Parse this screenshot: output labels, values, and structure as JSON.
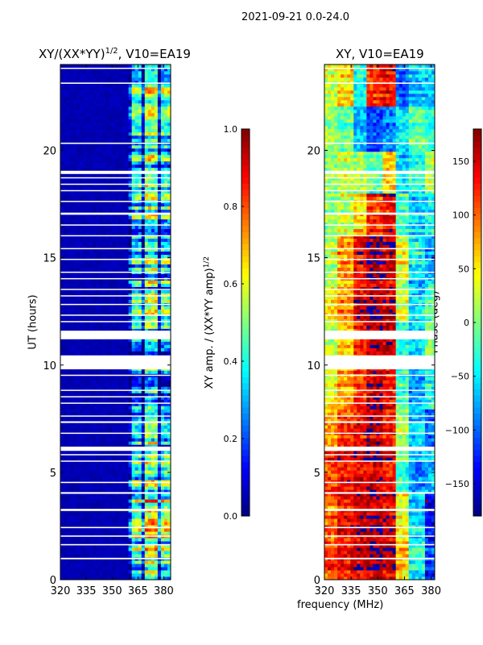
{
  "suptitle": "2021-09-21 0.0-24.0",
  "xlabel": "frequency (MHz)",
  "chart_data": [
    {
      "type": "heatmap",
      "title": "XY/(XX*YY)^{1/2}, V10=EA19",
      "title_main": "XY/(XX*YY)",
      "title_sup": "1/2",
      "title_suffix": ", V10=EA19",
      "xlabel": "frequency (MHz)",
      "ylabel": "UT (hours)",
      "xlim": [
        320,
        384
      ],
      "ylim": [
        0,
        24
      ],
      "xticks": [
        "320",
        "335",
        "350",
        "365",
        "380"
      ],
      "yticks": [
        "0",
        "5",
        "10",
        "15",
        "20"
      ],
      "freq_bins": [
        320,
        328,
        336,
        344,
        352,
        360,
        368,
        376,
        384
      ],
      "ut_bins": [
        0,
        2,
        4,
        6,
        8,
        10,
        12,
        14,
        16,
        18,
        20,
        22,
        24
      ],
      "values_by_ut_bin": [
        [
          0.05,
          0.05,
          0.05,
          0.05,
          0.05,
          0.45,
          0.6,
          0.5
        ],
        [
          0.05,
          0.05,
          0.05,
          0.05,
          0.05,
          0.5,
          0.65,
          0.55
        ],
        [
          0.05,
          0.05,
          0.05,
          0.05,
          0.05,
          0.4,
          0.5,
          0.45
        ],
        [
          0.05,
          0.05,
          0.05,
          0.05,
          0.05,
          0.3,
          0.45,
          0.3
        ],
        [
          0.05,
          0.05,
          0.05,
          0.05,
          0.05,
          0.25,
          0.35,
          0.25
        ],
        [
          0.05,
          0.05,
          0.05,
          0.05,
          0.05,
          0.3,
          0.4,
          0.3
        ],
        [
          0.05,
          0.05,
          0.05,
          0.05,
          0.05,
          0.35,
          0.45,
          0.35
        ],
        [
          0.05,
          0.05,
          0.05,
          0.05,
          0.05,
          0.35,
          0.45,
          0.35
        ],
        [
          0.05,
          0.05,
          0.05,
          0.05,
          0.05,
          0.35,
          0.45,
          0.35
        ],
        [
          0.05,
          0.05,
          0.05,
          0.05,
          0.05,
          0.35,
          0.45,
          0.35
        ],
        [
          0.05,
          0.05,
          0.05,
          0.05,
          0.05,
          0.4,
          0.5,
          0.4
        ],
        [
          0.05,
          0.05,
          0.05,
          0.05,
          0.05,
          0.4,
          0.5,
          0.4
        ]
      ],
      "colorbar": {
        "label": "XY amp. / (XX*YY amp)^{1/2}",
        "label_main": "XY amp. / (XX*YY amp)",
        "label_sup": "1/2",
        "range": [
          0,
          1
        ],
        "ticks": [
          "0.0",
          "0.2",
          "0.4",
          "0.6",
          "0.8",
          "1.0"
        ],
        "cmap": "jet"
      }
    },
    {
      "type": "heatmap",
      "title": "XY, V10=EA19",
      "xlabel": "frequency (MHz)",
      "ylabel": "",
      "xlim": [
        320,
        382
      ],
      "ylim": [
        0,
        24
      ],
      "xticks": [
        "320",
        "335",
        "350",
        "365",
        "380"
      ],
      "yticks": [
        "0",
        "5",
        "10",
        "15",
        "20"
      ],
      "freq_bins": [
        320,
        328,
        336,
        344,
        352,
        360,
        368,
        376,
        382
      ],
      "ut_bins": [
        0,
        2,
        4,
        6,
        8,
        10,
        12,
        14,
        16,
        18,
        20,
        22,
        24
      ],
      "values_by_ut_bin": [
        [
          110,
          130,
          150,
          160,
          150,
          60,
          -40,
          -120
        ],
        [
          100,
          140,
          150,
          160,
          150,
          40,
          -60,
          -140
        ],
        [
          120,
          140,
          150,
          160,
          140,
          -20,
          -80,
          -60
        ],
        [
          80,
          120,
          140,
          160,
          130,
          20,
          -60,
          -100
        ],
        [
          40,
          80,
          120,
          160,
          140,
          -20,
          -80,
          -40
        ],
        [
          20,
          60,
          120,
          160,
          150,
          -40,
          -60,
          0
        ],
        [
          40,
          80,
          140,
          160,
          150,
          20,
          -60,
          -20
        ],
        [
          20,
          80,
          140,
          170,
          160,
          40,
          -40,
          -80
        ],
        [
          10,
          20,
          60,
          120,
          140,
          -20,
          -60,
          -40
        ],
        [
          0,
          20,
          10,
          -20,
          60,
          -60,
          -40,
          20
        ],
        [
          20,
          0,
          -60,
          -100,
          -80,
          -40,
          0,
          -20
        ],
        [
          30,
          60,
          -40,
          120,
          140,
          -100,
          -60,
          -60
        ]
      ],
      "colorbar": {
        "label": "Phase (deg)",
        "range": [
          -180,
          180
        ],
        "ticks": [
          "−150",
          "−100",
          "−50",
          "0",
          "50",
          "100",
          "150"
        ],
        "cmap": "jet"
      }
    }
  ],
  "flagged_ut": [
    [
      0.95,
      1.02
    ],
    [
      1.6,
      1.66
    ],
    [
      2.0,
      2.06
    ],
    [
      2.4,
      2.46
    ],
    [
      3.2,
      3.3
    ],
    [
      4.0,
      4.08
    ],
    [
      4.5,
      4.56
    ],
    [
      5.5,
      5.55
    ],
    [
      5.8,
      5.85
    ],
    [
      6.0,
      6.2
    ],
    [
      6.8,
      6.85
    ],
    [
      7.3,
      7.38
    ],
    [
      7.6,
      7.65
    ],
    [
      8.2,
      8.25
    ],
    [
      8.5,
      8.55
    ],
    [
      8.8,
      8.85
    ],
    [
      9.5,
      9.55
    ],
    [
      9.8,
      10.45
    ],
    [
      11.2,
      11.6
    ],
    [
      12.0,
      12.05
    ],
    [
      12.3,
      12.35
    ],
    [
      12.8,
      12.85
    ],
    [
      13.2,
      13.25
    ],
    [
      13.5,
      13.55
    ],
    [
      14.0,
      14.05
    ],
    [
      14.3,
      14.35
    ],
    [
      14.9,
      14.95
    ],
    [
      15.4,
      15.45
    ],
    [
      16.0,
      16.05
    ],
    [
      16.5,
      16.55
    ],
    [
      17.0,
      17.1
    ],
    [
      17.6,
      17.65
    ],
    [
      18.1,
      18.15
    ],
    [
      18.4,
      18.45
    ],
    [
      18.7,
      18.75
    ],
    [
      18.9,
      19.05
    ],
    [
      20.3,
      20.36
    ],
    [
      23.1,
      23.16
    ],
    [
      23.8,
      23.85
    ]
  ]
}
